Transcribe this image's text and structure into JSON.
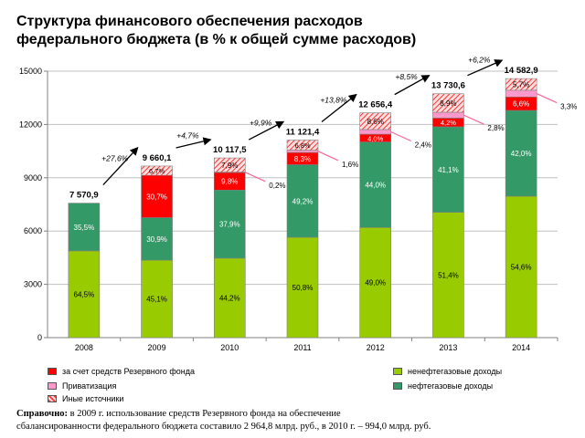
{
  "title_line1": "Структура финансового обеспечения расходов",
  "title_line2": "федерального бюджета (в % к общей сумме расходов)",
  "chart_data": {
    "type": "bar",
    "stacked": true,
    "ylim": [
      0,
      15000
    ],
    "yticks": [
      "0",
      "3000",
      "6000",
      "9000",
      "12000",
      "15000"
    ],
    "categories": [
      "2008",
      "2009",
      "2010",
      "2011",
      "2012",
      "2013",
      "2014"
    ],
    "totals": [
      "7 570,9",
      "9 660,1",
      "10 117,5",
      "11 121,4",
      "12 656,4",
      "13 730,6",
      "14 582,9"
    ],
    "total_values": [
      7570.9,
      9660.1,
      10117.5,
      11121.4,
      12656.4,
      13730.6,
      14582.9
    ],
    "growth": [
      "+27,6%",
      "+4,7%",
      "+9,9%",
      "+13,8%",
      "+8,5%",
      "+6,2%"
    ],
    "series": [
      {
        "key": "nonoil",
        "name": "ненефтегазовые доходы",
        "color": "#99cc00",
        "pct": [
          64.5,
          45.1,
          44.2,
          50.8,
          49.0,
          51.4,
          54.6
        ],
        "labels": [
          "64,5%",
          "45,1%",
          "44,2%",
          "50,8%",
          "49,0%",
          "51,4%",
          "54,6%"
        ]
      },
      {
        "key": "oil",
        "name": "нефтегазовые доходы",
        "color": "#339966",
        "pct": [
          35.5,
          30.9,
          37.9,
          49.2,
          44.0,
          41.1,
          42.0
        ],
        "labels": [
          "35,5%",
          "30,9%",
          "37,9%",
          "49,2%",
          "44,0%",
          "41,1%",
          "42,0%"
        ]
      },
      {
        "key": "reserve",
        "name": "за счет средств Резервного фонда",
        "color": "#ff0000",
        "pct": [
          0,
          30.7,
          9.8,
          8.3,
          4.0,
          4.2,
          6.6
        ],
        "labels": [
          "",
          "30,7%",
          "9,8%",
          "8,3%",
          "4,0%",
          "4,2%",
          "6,6%"
        ]
      },
      {
        "key": "privat",
        "name": "Приватизация",
        "color": "#ff99cc",
        "pct": [
          0,
          0,
          0.2,
          1.6,
          2.4,
          2.8,
          3.3
        ],
        "labels": [
          "",
          "",
          "0,2%",
          "1,6%",
          "2,4%",
          "2,8%",
          "3,3%"
        ]
      },
      {
        "key": "other",
        "name": "Иные источники",
        "color": "#ff6666",
        "pct": [
          0,
          6.7,
          7.9,
          6.8,
          8.6,
          8.9,
          5.7
        ],
        "labels": [
          "",
          "6,7%",
          "7,9%",
          "6,8%",
          "8,6%",
          "8,9%",
          "5,7%"
        ]
      }
    ]
  },
  "legend": {
    "reserve": "за счет средств Резервного фонда",
    "privat": "Приватизация",
    "other": "Иные источники",
    "nonoil": "ненефтегазовые доходы",
    "oil": "нефтегазовые доходы"
  },
  "note": {
    "label": "Справочно:",
    "line1": " в 2009 г. использование средств Резервного фонда на обеспечение",
    "line2": "сбалансированности федерального  бюджета составило 2 964,8 млрд. руб., в 2010 г. – 994,0 млрд. руб."
  },
  "colors": {
    "nonoil": "#99cc00",
    "oil": "#339966",
    "reserve": "#ff0000",
    "privat": "#ff99cc",
    "other": "#ff6666"
  }
}
